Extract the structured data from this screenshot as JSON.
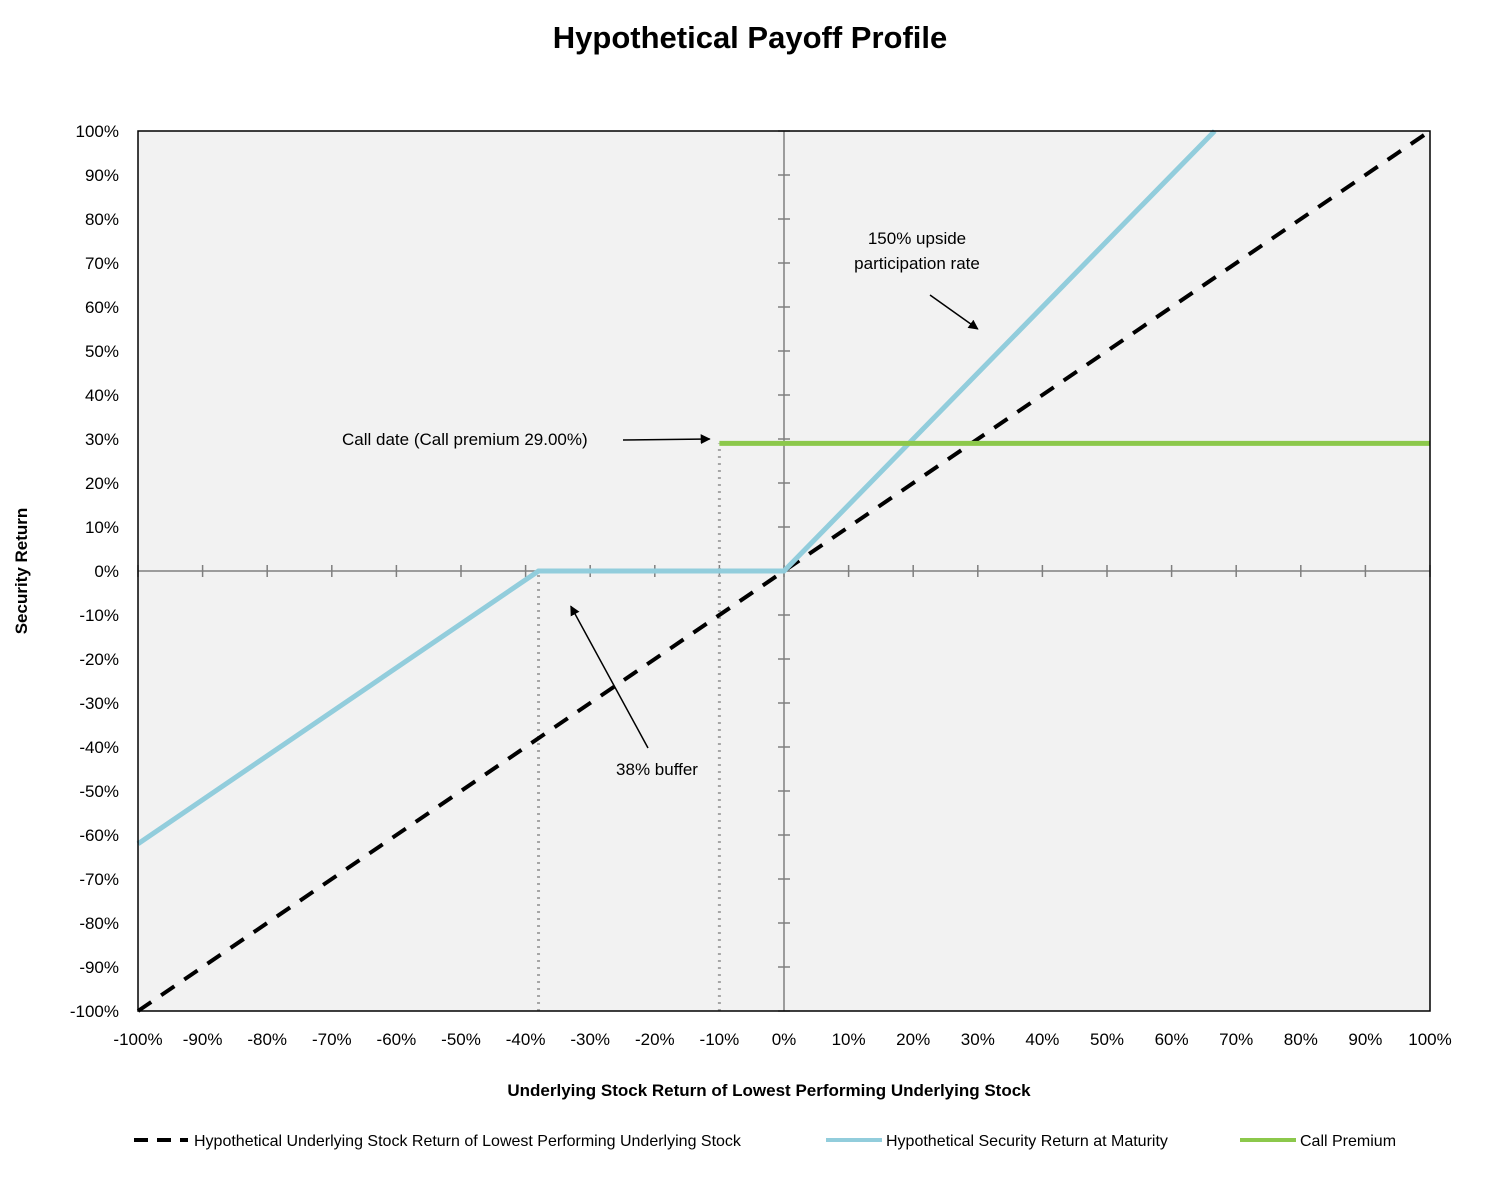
{
  "chart_data": {
    "type": "line",
    "title": "Hypothetical Payoff Profile",
    "xlabel": "Underlying Stock Return of Lowest Performing Underlying Stock",
    "ylabel": "Security Return",
    "xlim": [
      -100,
      100
    ],
    "ylim": [
      -100,
      100
    ],
    "x_ticks": [
      "-100%",
      "-90%",
      "-80%",
      "-70%",
      "-60%",
      "-50%",
      "-40%",
      "-30%",
      "-20%",
      "-10%",
      "0%",
      "10%",
      "20%",
      "30%",
      "40%",
      "50%",
      "60%",
      "70%",
      "80%",
      "90%",
      "100%"
    ],
    "y_ticks": [
      "100%",
      "90%",
      "80%",
      "70%",
      "60%",
      "50%",
      "40%",
      "30%",
      "20%",
      "10%",
      "0%",
      "-10%",
      "-20%",
      "-30%",
      "-40%",
      "-50%",
      "-60%",
      "-70%",
      "-80%",
      "-90%",
      "-100%"
    ],
    "legend_position": "bottom",
    "series": [
      {
        "name": "Hypothetical Underlying Stock Return of Lowest Performing Underlying Stock",
        "style": "dashed",
        "color": "#000000",
        "points": [
          [
            -100,
            -100
          ],
          [
            100,
            100
          ]
        ]
      },
      {
        "name": "Hypothetical Security Return at Maturity",
        "style": "solid",
        "color": "#92CDDC",
        "points": [
          [
            -100,
            -62
          ],
          [
            -38,
            0
          ],
          [
            0,
            0
          ],
          [
            66.67,
            100
          ]
        ]
      },
      {
        "name": "Call Premium",
        "style": "solid",
        "color": "#8CC84B",
        "points": [
          [
            -10,
            29
          ],
          [
            100,
            29
          ]
        ]
      }
    ],
    "reference_lines": [
      {
        "type": "vertical-dotted",
        "x": -38,
        "y_from": -100,
        "y_to": 0
      },
      {
        "type": "vertical-dotted",
        "x": -10,
        "y_from": -100,
        "y_to": 29
      }
    ],
    "annotations": [
      {
        "lines": [
          "150% upside",
          "participation rate"
        ],
        "arrow_to": [
          30,
          55
        ]
      },
      {
        "lines": [
          "Call date (Call premium 29.00%)"
        ],
        "arrow_to": [
          -11.5,
          30
        ]
      },
      {
        "lines": [
          "38% buffer"
        ],
        "arrow_to": [
          -33,
          -8
        ]
      }
    ]
  }
}
